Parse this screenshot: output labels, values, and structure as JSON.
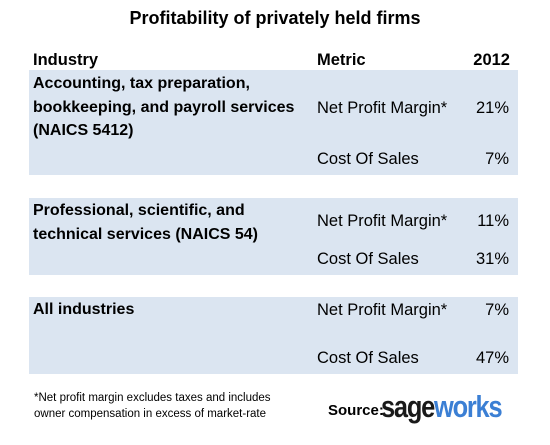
{
  "title": "Profitability of privately held firms",
  "headers": {
    "industry": "Industry",
    "metric": "Metric",
    "year": "2012"
  },
  "rows": [
    {
      "industry": "Accounting, tax preparation, bookkeeping, and payroll services (NAICS 5412)",
      "metrics": [
        {
          "name": "Net Profit Margin*",
          "value": "21%"
        },
        {
          "name": "Cost Of Sales",
          "value": "7%"
        }
      ]
    },
    {
      "industry": "Professional, scientific, and technical services (NAICS 54)",
      "metrics": [
        {
          "name": "Net Profit Margin*",
          "value": "11%"
        },
        {
          "name": "Cost Of Sales",
          "value": "31%"
        }
      ]
    },
    {
      "industry": "All industries",
      "metrics": [
        {
          "name": "Net Profit Margin*",
          "value": "7%"
        },
        {
          "name": "Cost Of Sales",
          "value": "47%"
        }
      ]
    }
  ],
  "footnote": "*Net profit margin excludes taxes and includes owner compensation in excess of market-rate",
  "source": {
    "label": "Source:",
    "logo_text_dark": "sage",
    "logo_text_blue": "works",
    "logo_colors": {
      "dark": "#1a1a1a",
      "blue": "#3b7fd4"
    }
  },
  "colors": {
    "row_band": "#dbe5f1",
    "background": "#ffffff"
  }
}
